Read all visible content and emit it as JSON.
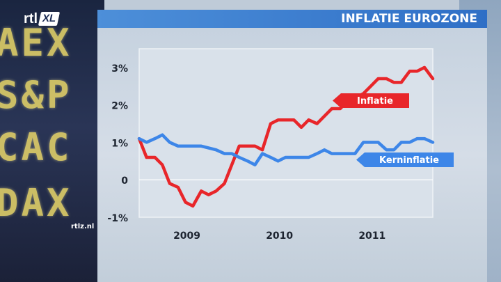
{
  "header": {
    "title": "INFLATIE EUROZONE",
    "logo_main": "rtl",
    "logo_sub": "XL",
    "site": "rtlz.nl"
  },
  "background_tickers": [
    "AEX",
    "S&P",
    "CAC",
    "DAX"
  ],
  "chart_data": {
    "type": "line",
    "title": "INFLATIE EUROZONE",
    "xlabel": "",
    "ylabel": "",
    "ylim": [
      -1,
      3.5
    ],
    "xlim": [
      2008.5,
      2011.67
    ],
    "y_ticks": [
      {
        "value": 3,
        "label": "3%"
      },
      {
        "value": 2,
        "label": "2%"
      },
      {
        "value": 1,
        "label": "1%"
      },
      {
        "value": 0,
        "label": "0"
      },
      {
        "value": -1,
        "label": "-1%"
      }
    ],
    "x_ticks": [
      {
        "value": 2009.0,
        "label": "2009"
      },
      {
        "value": 2010.0,
        "label": "2010"
      },
      {
        "value": 2011.0,
        "label": "2011"
      }
    ],
    "zero_line": true,
    "grid": false,
    "series": [
      {
        "name": "Inflatie",
        "color": "#e8262a",
        "points": [
          [
            2008.5,
            1.1
          ],
          [
            2008.58,
            0.6
          ],
          [
            2008.67,
            0.6
          ],
          [
            2008.75,
            0.4
          ],
          [
            2008.83,
            -0.1
          ],
          [
            2008.92,
            -0.2
          ],
          [
            2009.0,
            -0.6
          ],
          [
            2009.08,
            -0.7
          ],
          [
            2009.17,
            -0.3
          ],
          [
            2009.25,
            -0.4
          ],
          [
            2009.33,
            -0.3
          ],
          [
            2009.42,
            -0.1
          ],
          [
            2009.5,
            0.4
          ],
          [
            2009.58,
            0.9
          ],
          [
            2009.67,
            0.9
          ],
          [
            2009.75,
            0.9
          ],
          [
            2009.83,
            0.8
          ],
          [
            2009.92,
            1.5
          ],
          [
            2010.0,
            1.6
          ],
          [
            2010.08,
            1.6
          ],
          [
            2010.17,
            1.6
          ],
          [
            2010.25,
            1.4
          ],
          [
            2010.33,
            1.6
          ],
          [
            2010.42,
            1.5
          ],
          [
            2010.5,
            1.7
          ],
          [
            2010.58,
            1.9
          ],
          [
            2010.67,
            1.9
          ],
          [
            2010.75,
            2.1
          ],
          [
            2010.83,
            2.2
          ],
          [
            2010.92,
            2.3
          ],
          [
            2011.0,
            2.5
          ],
          [
            2011.08,
            2.7
          ],
          [
            2011.17,
            2.7
          ],
          [
            2011.25,
            2.6
          ],
          [
            2011.33,
            2.6
          ],
          [
            2011.42,
            2.9
          ],
          [
            2011.5,
            2.9
          ],
          [
            2011.58,
            3.0
          ],
          [
            2011.67,
            2.7
          ]
        ]
      },
      {
        "name": "Kerninflatie",
        "color": "#3d86e8",
        "points": [
          [
            2008.5,
            1.1
          ],
          [
            2008.58,
            1.0
          ],
          [
            2008.67,
            1.1
          ],
          [
            2008.75,
            1.2
          ],
          [
            2008.83,
            1.0
          ],
          [
            2008.92,
            0.9
          ],
          [
            2009.0,
            0.9
          ],
          [
            2009.17,
            0.9
          ],
          [
            2009.33,
            0.8
          ],
          [
            2009.42,
            0.7
          ],
          [
            2009.5,
            0.7
          ],
          [
            2009.58,
            0.6
          ],
          [
            2009.67,
            0.5
          ],
          [
            2009.75,
            0.4
          ],
          [
            2009.83,
            0.7
          ],
          [
            2009.92,
            0.6
          ],
          [
            2010.0,
            0.5
          ],
          [
            2010.08,
            0.6
          ],
          [
            2010.17,
            0.6
          ],
          [
            2010.33,
            0.6
          ],
          [
            2010.42,
            0.7
          ],
          [
            2010.5,
            0.8
          ],
          [
            2010.58,
            0.7
          ],
          [
            2010.75,
            0.7
          ],
          [
            2010.83,
            0.7
          ],
          [
            2010.92,
            1.0
          ],
          [
            2011.0,
            1.0
          ],
          [
            2011.08,
            1.0
          ],
          [
            2011.17,
            0.8
          ],
          [
            2011.25,
            0.8
          ],
          [
            2011.33,
            1.0
          ],
          [
            2011.42,
            1.0
          ],
          [
            2011.5,
            1.1
          ],
          [
            2011.58,
            1.1
          ],
          [
            2011.67,
            1.0
          ]
        ]
      }
    ],
    "annotations": [
      {
        "text": "Inflatie",
        "series": "Inflatie",
        "color": "#e8262a"
      },
      {
        "text": "Kerninflatie",
        "series": "Kerninflatie",
        "color": "#3d86e8"
      }
    ]
  }
}
